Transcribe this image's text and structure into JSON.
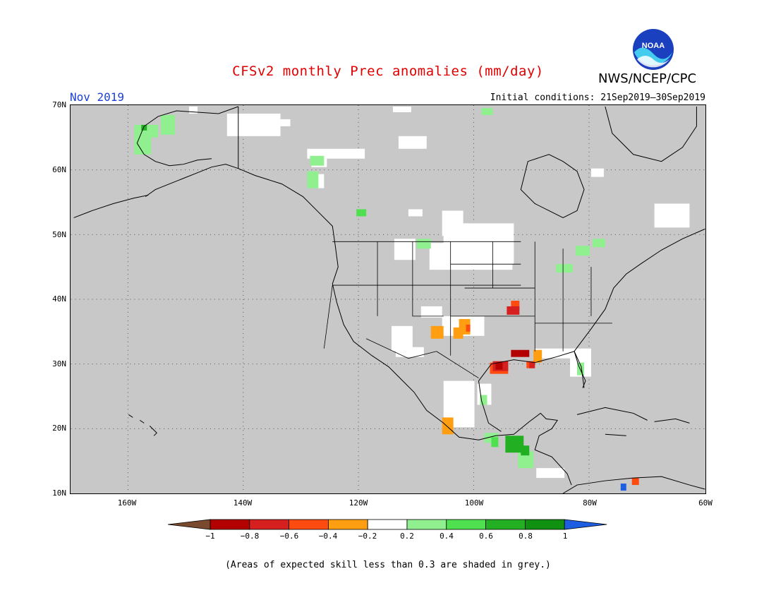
{
  "title": "CFSv2 monthly Prec anomalies (mm/day)",
  "org": "NWS/NCEP/CPC",
  "logo_text": "NOAA",
  "month": "Nov 2019",
  "initial_conditions": "Initial conditions: 21Sep2019–30Sep2019",
  "lat_labels": [
    "70N",
    "60N",
    "50N",
    "40N",
    "30N",
    "20N",
    "10N"
  ],
  "lon_labels": [
    "160W",
    "140W",
    "120W",
    "100W",
    "80W",
    "60W"
  ],
  "legend": {
    "colors": [
      "#7a4a2e",
      "#b30000",
      "#d62020",
      "#ff4a10",
      "#ff9e10",
      "#ffffff",
      "#90f090",
      "#4ee04e",
      "#22b022",
      "#109010",
      "#1d5fe0"
    ],
    "ticks": [
      "−1",
      "−0.8",
      "−0.6",
      "−0.4",
      "−0.2",
      "0.2",
      "0.4",
      "0.6",
      "0.8",
      "1"
    ]
  },
  "colors": {
    "land_grey": "#c8c8c8",
    "title_red": "#e00000",
    "month_blue": "#1b3fd6"
  },
  "note": "(Areas of expected skill less than 0.3 are shaded in grey.)"
}
